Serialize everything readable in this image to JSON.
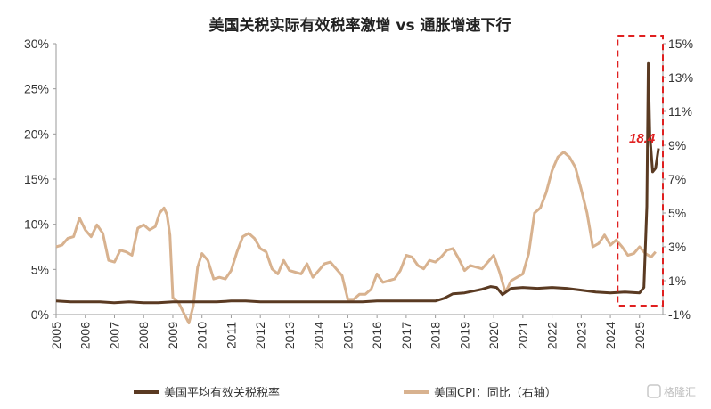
{
  "chart_data": {
    "type": "line",
    "title": "美国关税实际有效税率激增 vs 通胀增速下行",
    "x_ticks": [
      "2005",
      "2006",
      "2007",
      "2008",
      "2009",
      "2010",
      "2011",
      "2012",
      "2013",
      "2014",
      "2015",
      "2016",
      "2017",
      "2018",
      "2019",
      "2020",
      "2021",
      "2022",
      "2023",
      "2024",
      "2025"
    ],
    "x_range": [
      2005,
      2025.8
    ],
    "y_left": {
      "ticks": [
        "0%",
        "5%",
        "10%",
        "15%",
        "20%",
        "25%",
        "30%"
      ],
      "range": [
        0,
        30
      ]
    },
    "y_right": {
      "ticks": [
        "-1%",
        "1%",
        "3%",
        "5%",
        "7%",
        "9%",
        "11%",
        "13%",
        "15%"
      ],
      "range": [
        -1,
        15
      ]
    },
    "series": [
      {
        "name": "美国平均有效关税税率",
        "axis": "left",
        "color": "#5a3a22",
        "x": [
          2005.0,
          2005.5,
          2006.0,
          2006.5,
          2007.0,
          2007.5,
          2008.0,
          2008.5,
          2009.0,
          2009.5,
          2010.0,
          2010.5,
          2011.0,
          2011.5,
          2012.0,
          2012.5,
          2013.0,
          2013.5,
          2014.0,
          2014.5,
          2015.0,
          2015.5,
          2016.0,
          2016.5,
          2017.0,
          2017.5,
          2018.0,
          2018.3,
          2018.6,
          2019.0,
          2019.3,
          2019.6,
          2019.9,
          2020.1,
          2020.3,
          2020.6,
          2021.0,
          2021.5,
          2022.0,
          2022.5,
          2023.0,
          2023.5,
          2024.0,
          2024.5,
          2025.0,
          2025.15,
          2025.25,
          2025.3,
          2025.35,
          2025.45,
          2025.55,
          2025.65
        ],
        "values": [
          1.5,
          1.4,
          1.4,
          1.4,
          1.3,
          1.4,
          1.3,
          1.3,
          1.4,
          1.4,
          1.4,
          1.4,
          1.5,
          1.5,
          1.4,
          1.4,
          1.4,
          1.4,
          1.4,
          1.4,
          1.4,
          1.4,
          1.5,
          1.5,
          1.5,
          1.5,
          1.5,
          1.8,
          2.3,
          2.4,
          2.6,
          2.8,
          3.1,
          3.0,
          2.2,
          2.9,
          3.0,
          2.9,
          3.0,
          2.9,
          2.7,
          2.5,
          2.4,
          2.5,
          2.4,
          3.0,
          12.0,
          27.8,
          20.0,
          15.8,
          16.2,
          18.4
        ]
      },
      {
        "name": "美国CPI：同比（右轴）",
        "axis": "right",
        "color": "#d8b28f",
        "x": [
          2005.0,
          2005.2,
          2005.4,
          2005.6,
          2005.8,
          2006.0,
          2006.2,
          2006.4,
          2006.6,
          2006.8,
          2007.0,
          2007.2,
          2007.4,
          2007.6,
          2007.8,
          2008.0,
          2008.2,
          2008.4,
          2008.55,
          2008.7,
          2008.8,
          2008.9,
          2009.0,
          2009.2,
          2009.4,
          2009.55,
          2009.7,
          2009.85,
          2010.0,
          2010.2,
          2010.4,
          2010.6,
          2010.8,
          2011.0,
          2011.2,
          2011.4,
          2011.6,
          2011.8,
          2012.0,
          2012.2,
          2012.4,
          2012.6,
          2012.8,
          2013.0,
          2013.2,
          2013.4,
          2013.6,
          2013.8,
          2014.0,
          2014.2,
          2014.4,
          2014.6,
          2014.8,
          2015.0,
          2015.2,
          2015.4,
          2015.6,
          2015.8,
          2016.0,
          2016.2,
          2016.4,
          2016.6,
          2016.8,
          2017.0,
          2017.2,
          2017.4,
          2017.6,
          2017.8,
          2018.0,
          2018.2,
          2018.4,
          2018.6,
          2018.8,
          2019.0,
          2019.2,
          2019.4,
          2019.6,
          2019.8,
          2020.0,
          2020.2,
          2020.4,
          2020.6,
          2020.8,
          2021.0,
          2021.2,
          2021.4,
          2021.6,
          2021.8,
          2022.0,
          2022.2,
          2022.4,
          2022.6,
          2022.8,
          2023.0,
          2023.2,
          2023.4,
          2023.6,
          2023.8,
          2024.0,
          2024.2,
          2024.4,
          2024.6,
          2024.8,
          2025.0,
          2025.2,
          2025.4,
          2025.55
        ],
        "values": [
          3.0,
          3.1,
          3.5,
          3.6,
          4.7,
          4.0,
          3.6,
          4.3,
          3.8,
          2.2,
          2.1,
          2.8,
          2.7,
          2.5,
          4.1,
          4.3,
          4.0,
          4.2,
          5.0,
          5.3,
          4.9,
          3.7,
          0.0,
          -0.3,
          -1.0,
          -1.5,
          -0.5,
          1.8,
          2.6,
          2.2,
          1.1,
          1.2,
          1.1,
          1.6,
          2.7,
          3.6,
          3.8,
          3.5,
          2.9,
          2.7,
          1.7,
          1.4,
          2.2,
          1.6,
          1.5,
          1.4,
          2.0,
          1.2,
          1.6,
          2.0,
          2.1,
          1.7,
          1.3,
          -0.1,
          -0.1,
          0.2,
          0.2,
          0.5,
          1.4,
          0.9,
          1.0,
          1.1,
          1.6,
          2.5,
          2.4,
          1.9,
          1.7,
          2.2,
          2.1,
          2.4,
          2.8,
          2.9,
          2.3,
          1.6,
          1.9,
          1.8,
          1.7,
          2.1,
          2.5,
          1.5,
          0.3,
          1.0,
          1.2,
          1.4,
          2.6,
          5.0,
          5.3,
          6.2,
          7.5,
          8.3,
          8.6,
          8.3,
          7.7,
          6.4,
          5.0,
          3.0,
          3.2,
          3.7,
          3.1,
          3.4,
          3.0,
          2.5,
          2.6,
          3.0,
          2.6,
          2.4,
          2.7
        ]
      }
    ],
    "annotation": {
      "text": "18.4",
      "color": "#e02020"
    },
    "highlight_box": {
      "x_start": 2024.25,
      "x_end": 2025.8,
      "color": "#e02020",
      "style": "dashed"
    },
    "legend": {
      "position": "bottom"
    },
    "grid": false
  },
  "watermark": {
    "text": "格隆汇"
  }
}
